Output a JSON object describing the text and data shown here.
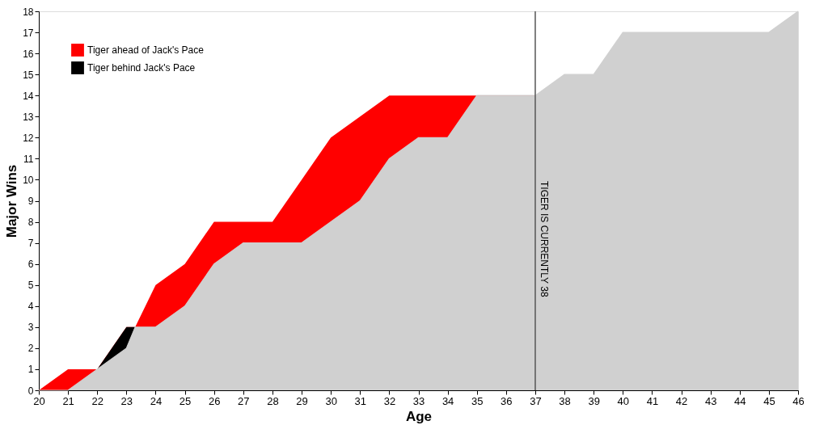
{
  "chart_data": {
    "type": "area",
    "xlabel": "Age",
    "ylabel": "Major Wins",
    "series": [
      {
        "name": "Tiger ahead of Jack's Pace",
        "color": "#ff0000",
        "x": [
          20,
          21,
          22,
          23,
          23.3,
          24,
          25,
          26,
          27,
          28,
          29,
          30,
          31,
          32,
          33,
          34,
          35,
          36,
          37
        ],
        "values": [
          0,
          1,
          1,
          3,
          3,
          5,
          6,
          8,
          8,
          8,
          10,
          12,
          13,
          14,
          14,
          14,
          14,
          14,
          14
        ]
      },
      {
        "name": "Tiger behind Jack's Pace",
        "color": "#000000",
        "x": [
          22,
          23,
          23.3
        ],
        "values": [
          1,
          3,
          3
        ]
      },
      {
        "color": "#d0d0d0",
        "x": [
          20,
          21,
          22,
          23,
          23.3,
          24,
          25,
          26,
          27,
          28,
          29,
          30,
          31,
          32,
          33,
          34,
          35,
          36,
          37,
          38,
          39,
          40,
          41,
          42,
          43,
          44,
          45,
          46
        ],
        "values": [
          0,
          0,
          1,
          2,
          3,
          3,
          4,
          6,
          7,
          7,
          7,
          8,
          9,
          11,
          12,
          12,
          14,
          14,
          14,
          15,
          15,
          17,
          17,
          17,
          17,
          17,
          17,
          18
        ]
      }
    ],
    "xlim": [
      20,
      46
    ],
    "xticks": [
      20,
      21,
      22,
      23,
      24,
      25,
      26,
      27,
      28,
      29,
      30,
      31,
      32,
      33,
      34,
      35,
      36,
      37,
      38,
      39,
      40,
      41,
      42,
      43,
      44,
      45,
      46
    ],
    "ylim": [
      0,
      18
    ],
    "yticks": [
      0,
      1,
      2,
      3,
      4,
      5,
      6,
      7,
      8,
      9,
      10,
      11,
      12,
      13,
      14,
      15,
      16,
      17,
      18
    ],
    "ref_lines": [
      {
        "axis": "x",
        "value": 37,
        "label": "TIGER IS CURRENTLY 38",
        "color": "#555555"
      }
    ],
    "grid": false,
    "legend": "top left"
  }
}
